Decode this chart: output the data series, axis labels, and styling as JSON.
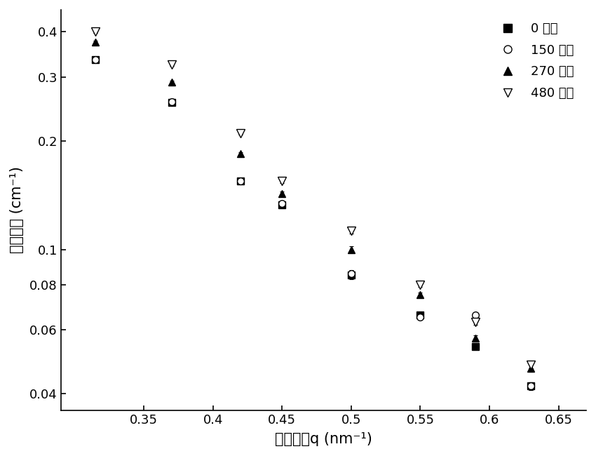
{
  "x_values": [
    0.315,
    0.37,
    0.42,
    0.45,
    0.5,
    0.55,
    0.59,
    0.63
  ],
  "series_order": [
    "0 分钟",
    "150 分钟",
    "270 分钟",
    "480 分钟"
  ],
  "series": {
    "0 分钟": {
      "y": [
        0.335,
        0.255,
        0.155,
        0.133,
        0.085,
        0.066,
        0.054,
        0.042
      ],
      "yerr": [
        0.003,
        0.003,
        0.002,
        0.002,
        0.002,
        0.001,
        0.001,
        0.001
      ],
      "marker": "s",
      "fillstyle": "full",
      "markersize": 7
    },
    "150 分钟": {
      "y": [
        0.335,
        0.256,
        0.155,
        0.134,
        0.086,
        0.065,
        0.066,
        0.042
      ],
      "yerr": [
        0.003,
        0.003,
        0.002,
        0.002,
        0.002,
        0.001,
        0.001,
        0.001
      ],
      "marker": "o",
      "fillstyle": "none",
      "markersize": 7
    },
    "270 分钟": {
      "y": [
        0.375,
        0.29,
        0.184,
        0.143,
        0.1,
        0.075,
        0.057,
        0.047
      ],
      "yerr": [
        0.003,
        0.003,
        0.002,
        0.002,
        0.002,
        0.001,
        0.001,
        0.001
      ],
      "marker": "^",
      "fillstyle": "full",
      "markersize": 7
    },
    "480 分钟": {
      "y": [
        0.4,
        0.325,
        0.21,
        0.155,
        0.113,
        0.08,
        0.063,
        0.048
      ],
      "yerr": [
        0.003,
        0.003,
        0.002,
        0.002,
        0.002,
        0.001,
        0.001,
        0.001
      ],
      "marker": "v",
      "fillstyle": "none",
      "markersize": 8
    }
  },
  "xlabel": "散射矢量q (nm⁻¹)",
  "ylabel": "散射强度 (cm⁻¹)",
  "xlim": [
    0.29,
    0.67
  ],
  "ylim": [
    0.036,
    0.46
  ],
  "xticks": [
    0.35,
    0.4,
    0.45,
    0.5,
    0.55,
    0.6,
    0.65
  ],
  "yticks": [
    0.04,
    0.06,
    0.08,
    0.1,
    0.2,
    0.3,
    0.4
  ],
  "ytick_labels": [
    "0.04",
    "0.06",
    "0.08",
    "0.1",
    "0.2",
    "0.3",
    "0.4"
  ],
  "xtick_labels": [
    "0.35",
    "0.4",
    "0.45",
    "0.5",
    "0.55",
    "0.6",
    "0.65"
  ]
}
